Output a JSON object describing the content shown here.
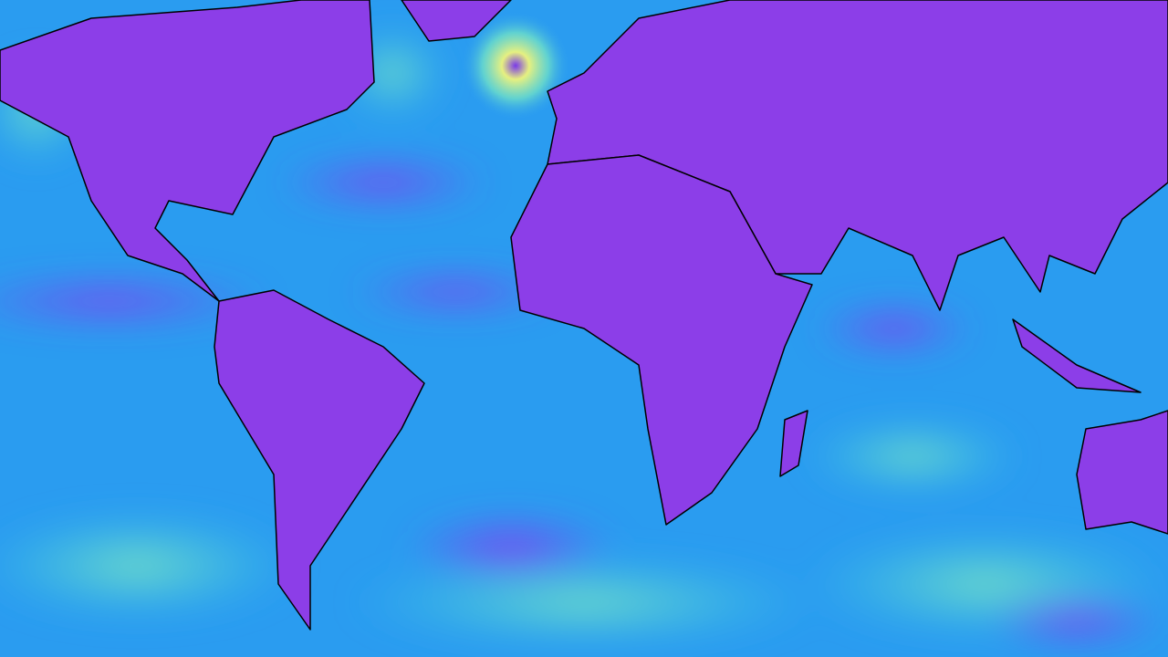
{
  "map": {
    "type": "global wind speed field, equirectangular projection",
    "colors": {
      "low": "#8a2be2",
      "mid": "#1e90ff",
      "high": "#40e0d0",
      "peak": "#e8f07a",
      "coastline": "#000000"
    },
    "features": [
      "north-america",
      "greenland",
      "south-america",
      "europe-asia",
      "africa",
      "madagascar",
      "australia",
      "north-atlantic-cyclone"
    ]
  }
}
